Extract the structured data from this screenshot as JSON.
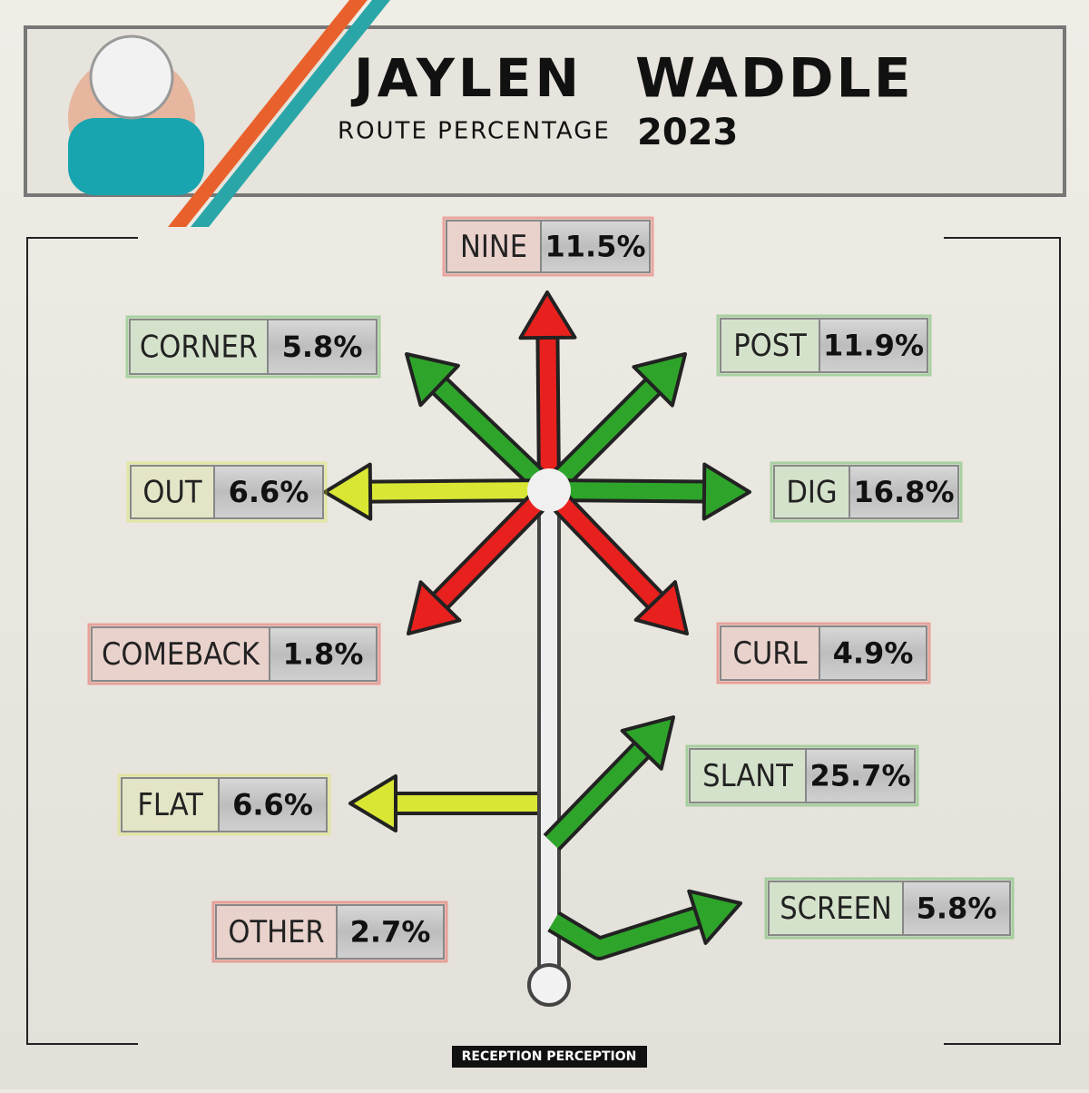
{
  "header": {
    "first_name": "JAYLEN",
    "last_name": "WADDLE",
    "subtitle": "ROUTE PERCENTAGE",
    "year": "2023"
  },
  "routes": [
    {
      "name": "NINE",
      "value": "11.5%",
      "color": "#e8211e"
    },
    {
      "name": "CORNER",
      "value": "5.8%",
      "color": "#2ea52a"
    },
    {
      "name": "POST",
      "value": "11.9%",
      "color": "#2ea52a"
    },
    {
      "name": "OUT",
      "value": "6.6%",
      "color": "#d9e634"
    },
    {
      "name": "DIG",
      "value": "16.8%",
      "color": "#2ea52a"
    },
    {
      "name": "COMEBACK",
      "value": "1.8%",
      "color": "#e8211e"
    },
    {
      "name": "CURL",
      "value": "4.9%",
      "color": "#e8211e"
    },
    {
      "name": "SLANT",
      "value": "25.7%",
      "color": "#2ea52a"
    },
    {
      "name": "FLAT",
      "value": "6.6%",
      "color": "#d9e634"
    },
    {
      "name": "SCREEN",
      "value": "5.8%",
      "color": "#2ea52a"
    },
    {
      "name": "OTHER",
      "value": "2.7%",
      "color": "#e8211e"
    }
  ],
  "footer": "RECEPTION PERCEPTION"
}
